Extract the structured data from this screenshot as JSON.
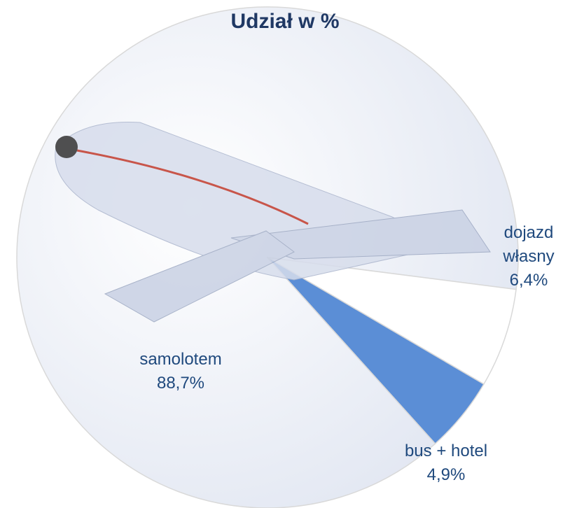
{
  "chart_data": {
    "type": "pie",
    "title": "Udział w %",
    "categories": [
      "samolotem",
      "dojazd własny",
      "bus + hotel"
    ],
    "values": [
      88.7,
      6.4,
      4.9
    ],
    "value_labels": [
      "88,7%",
      "6,4%",
      "4,9%"
    ],
    "colors": [
      "#eef1f8",
      "#ffffff",
      "#5b8ed6"
    ]
  }
}
